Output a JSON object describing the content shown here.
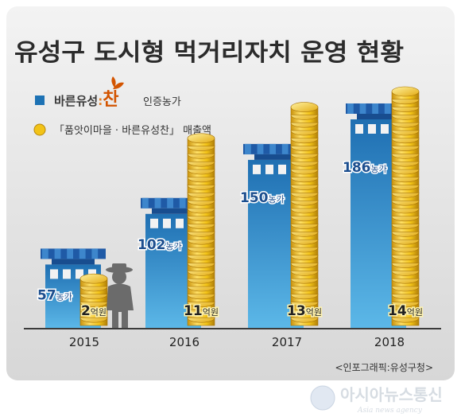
{
  "chart_data": {
    "type": "bar",
    "title": "유성구 도시형 먹거리자치 운영 현황",
    "categories": [
      "2015",
      "2016",
      "2017",
      "2018"
    ],
    "series": [
      {
        "name": "바른유성:찬 인증농가",
        "values": [
          57,
          102,
          150,
          186
        ],
        "value_labels": [
          "57",
          "102",
          "150",
          "186"
        ],
        "unit": "농가",
        "style": "building",
        "color": "#2a86c8"
      },
      {
        "name": "「품앗이마을 · 바른유성찬」 매출액",
        "values": [
          2,
          11,
          13,
          14
        ],
        "value_labels": [
          "2",
          "11",
          "13",
          "14"
        ],
        "unit": "억원",
        "style": "coin-stack",
        "color": "#f2c318"
      }
    ],
    "legend_placement": "top-left",
    "grid": false
  },
  "legend": {
    "brand_prefix": "바른유성",
    "brand_colon": ":",
    "brand_char": "찬",
    "series1_suffix": "인증농가",
    "series2_label": "「품앗이마을 · 바른유성찬」 매출액"
  },
  "source": "<인포그래픽:유성구청>",
  "watermark": {
    "name": "아시아뉴스통신",
    "english": "Asia news agency"
  },
  "colors": {
    "background_top": "#f1f1f1",
    "background_bottom": "#d9d9d9",
    "building_light": "#5cb4e6",
    "building_dark": "#1d72b4",
    "roof": "#1f5aa6",
    "coin_gold": "#f2c318",
    "coin_edge": "#b7870a",
    "ground": "#3b3b3b"
  }
}
